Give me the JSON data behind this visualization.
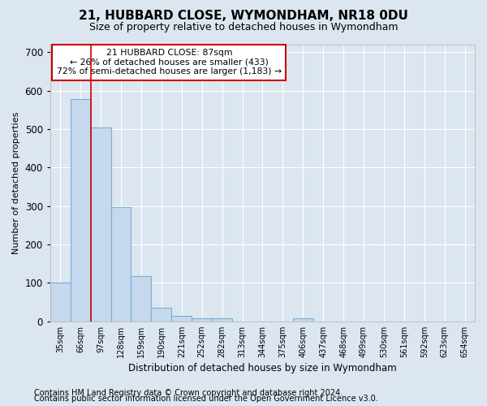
{
  "title1": "21, HUBBARD CLOSE, WYMONDHAM, NR18 0DU",
  "title2": "Size of property relative to detached houses in Wymondham",
  "xlabel": "Distribution of detached houses by size in Wymondham",
  "ylabel": "Number of detached properties",
  "footnote1": "Contains HM Land Registry data © Crown copyright and database right 2024.",
  "footnote2": "Contains public sector information licensed under the Open Government Licence v3.0.",
  "categories": [
    "35sqm",
    "66sqm",
    "97sqm",
    "128sqm",
    "159sqm",
    "190sqm",
    "221sqm",
    "252sqm",
    "282sqm",
    "313sqm",
    "344sqm",
    "375sqm",
    "406sqm",
    "437sqm",
    "468sqm",
    "499sqm",
    "530sqm",
    "561sqm",
    "592sqm",
    "623sqm",
    "654sqm"
  ],
  "bar_values": [
    100,
    578,
    505,
    298,
    117,
    35,
    15,
    8,
    7,
    0,
    0,
    0,
    8,
    0,
    0,
    0,
    0,
    0,
    0,
    0,
    0
  ],
  "bar_color": "#c5d8ed",
  "bar_edge_color": "#7aafd4",
  "vline_x": 2.0,
  "vline_color": "#cc0000",
  "annotation_text": "21 HUBBARD CLOSE: 87sqm\n← 26% of detached houses are smaller (433)\n72% of semi-detached houses are larger (1,183) →",
  "annotation_box_color": "#ffffff",
  "annotation_box_edgecolor": "#cc0000",
  "ylim": [
    0,
    720
  ],
  "yticks": [
    0,
    100,
    200,
    300,
    400,
    500,
    600,
    700
  ],
  "background_color": "#dce6f0",
  "plot_background": "#dce6f0",
  "grid_color": "#ffffff",
  "title1_fontsize": 11,
  "title2_fontsize": 9,
  "footnote_fontsize": 7
}
